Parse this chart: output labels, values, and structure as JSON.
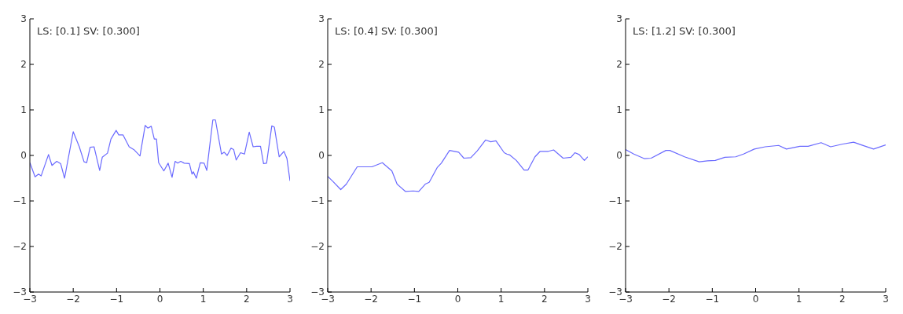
{
  "chart_data": [
    {
      "type": "line",
      "annotations": [
        "LS: [0.1] SV: [0.300]"
      ],
      "color": "#6a6aff",
      "xlim": [
        -3,
        3
      ],
      "ylim": [
        -3,
        3
      ],
      "xticks": [
        {
          "value": -3,
          "label": "−3"
        },
        {
          "value": -2,
          "label": "−2"
        },
        {
          "value": -1,
          "label": "−1"
        },
        0,
        1,
        2,
        3
      ],
      "yticks": [
        {
          "value": -3,
          "label": "−3"
        },
        {
          "value": -2,
          "label": "−2"
        },
        {
          "value": -1,
          "label": "−1"
        },
        0,
        1,
        2,
        3
      ],
      "x": [
        -3,
        -2.88,
        -2.8,
        -2.74,
        -2.57,
        -2.49,
        -2.38,
        -2.29,
        -2.2,
        -2.0,
        -1.86,
        -1.75,
        -1.69,
        -1.61,
        -1.52,
        -1.39,
        -1.33,
        -1.21,
        -1.13,
        -1.01,
        -0.95,
        -0.85,
        -0.71,
        -0.59,
        -0.46,
        -0.34,
        -0.28,
        -0.2,
        -0.13,
        -0.08,
        -0.03,
        0.09,
        0.19,
        0.28,
        0.35,
        0.41,
        0.48,
        0.56,
        0.68,
        0.74,
        0.77,
        0.84,
        0.93,
        1.02,
        1.08,
        1.22,
        1.28,
        1.42,
        1.48,
        1.55,
        1.64,
        1.7,
        1.76,
        1.86,
        1.95,
        2.06,
        2.15,
        2.23,
        2.32,
        2.39,
        2.46,
        2.58,
        2.64,
        2.75,
        2.86,
        2.93,
        3.0
      ],
      "values": [
        -0.16,
        -0.47,
        -0.41,
        -0.45,
        0.02,
        -0.22,
        -0.13,
        -0.18,
        -0.5,
        0.52,
        0.19,
        -0.14,
        -0.16,
        0.18,
        0.19,
        -0.33,
        -0.04,
        0.05,
        0.36,
        0.55,
        0.45,
        0.45,
        0.19,
        0.12,
        -0.01,
        0.66,
        0.6,
        0.64,
        0.36,
        0.36,
        -0.16,
        -0.34,
        -0.17,
        -0.48,
        -0.13,
        -0.17,
        -0.13,
        -0.17,
        -0.18,
        -0.41,
        -0.36,
        -0.5,
        -0.16,
        -0.17,
        -0.33,
        0.78,
        0.78,
        0.03,
        0.07,
        0.0,
        0.16,
        0.13,
        -0.1,
        0.06,
        0.03,
        0.51,
        0.19,
        0.2,
        0.2,
        -0.18,
        -0.17,
        0.65,
        0.62,
        -0.03,
        0.09,
        -0.07,
        -0.56
      ]
    },
    {
      "type": "line",
      "annotations": [
        "LS: [0.4] SV: [0.300]"
      ],
      "color": "#6a6aff",
      "xlim": [
        -3,
        3
      ],
      "ylim": [
        -3,
        3
      ],
      "xticks": [
        {
          "value": -3,
          "label": "−3"
        },
        {
          "value": -2,
          "label": "−2"
        },
        {
          "value": -1,
          "label": "−1"
        },
        0,
        1,
        2,
        3
      ],
      "yticks": [
        {
          "value": -3,
          "label": "−3"
        },
        {
          "value": -2,
          "label": "−2"
        },
        {
          "value": -1,
          "label": "−1"
        },
        0,
        1,
        2,
        3
      ],
      "x": [
        -3,
        -2.88,
        -2.7,
        -2.57,
        -2.32,
        -1.98,
        -1.74,
        -1.52,
        -1.4,
        -1.21,
        -1.03,
        -0.9,
        -0.75,
        -0.66,
        -0.47,
        -0.38,
        -0.19,
        0.02,
        0.14,
        0.3,
        0.45,
        0.64,
        0.76,
        0.88,
        1.07,
        1.13,
        1.2,
        1.35,
        1.53,
        1.62,
        1.78,
        1.9,
        2.09,
        2.21,
        2.43,
        2.61,
        2.7,
        2.8,
        2.92,
        3.0
      ],
      "values": [
        -0.46,
        -0.57,
        -0.75,
        -0.63,
        -0.25,
        -0.25,
        -0.16,
        -0.34,
        -0.63,
        -0.79,
        -0.78,
        -0.79,
        -0.63,
        -0.59,
        -0.26,
        -0.17,
        0.11,
        0.07,
        -0.06,
        -0.05,
        0.1,
        0.34,
        0.3,
        0.32,
        0.06,
        0.03,
        0.01,
        -0.11,
        -0.32,
        -0.32,
        -0.03,
        0.09,
        0.09,
        0.12,
        -0.06,
        -0.04,
        0.06,
        0.02,
        -0.11,
        -0.03
      ]
    },
    {
      "type": "line",
      "annotations": [
        "LS: [1.2] SV: [0.300]"
      ],
      "color": "#6a6aff",
      "xlim": [
        -3,
        3
      ],
      "ylim": [
        -3,
        3
      ],
      "xticks": [
        {
          "value": -3,
          "label": "−3"
        },
        {
          "value": -2,
          "label": "−2"
        },
        {
          "value": -1,
          "label": "−1"
        },
        0,
        1,
        2,
        3
      ],
      "yticks": [
        {
          "value": -3,
          "label": "−3"
        },
        {
          "value": -2,
          "label": "−2"
        },
        {
          "value": -1,
          "label": "−1"
        },
        0,
        1,
        2,
        3
      ],
      "x": [
        -3,
        -2.81,
        -2.57,
        -2.41,
        -2.07,
        -1.98,
        -1.64,
        -1.3,
        -1.11,
        -0.93,
        -0.71,
        -0.46,
        -0.28,
        -0.03,
        0.22,
        0.53,
        0.71,
        1.02,
        1.21,
        1.51,
        1.73,
        2.01,
        2.26,
        2.44,
        2.72,
        3.0
      ],
      "values": [
        0.13,
        0.03,
        -0.07,
        -0.06,
        0.11,
        0.11,
        -0.03,
        -0.14,
        -0.12,
        -0.11,
        -0.04,
        -0.03,
        0.03,
        0.14,
        0.19,
        0.22,
        0.14,
        0.2,
        0.2,
        0.28,
        0.19,
        0.25,
        0.29,
        0.23,
        0.14,
        0.23
      ]
    }
  ]
}
